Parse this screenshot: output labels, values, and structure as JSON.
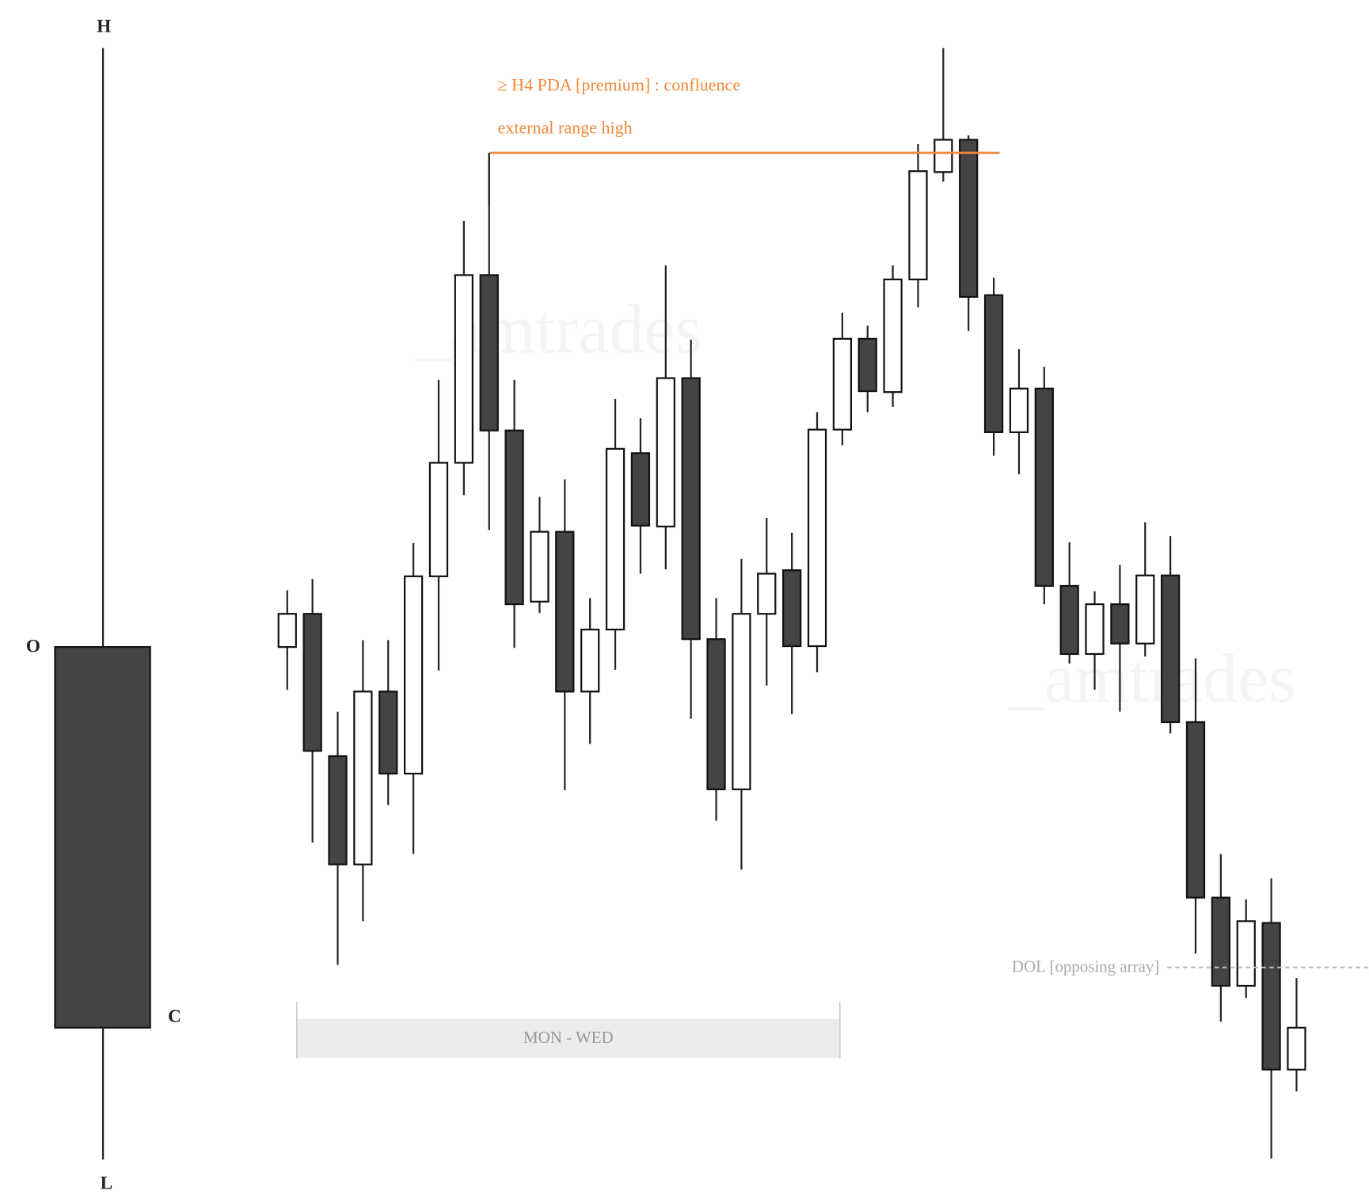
{
  "legend": {
    "labels": {
      "open": "O",
      "high": "H",
      "low": "L",
      "close": "C"
    }
  },
  "watermarks": [
    "_amtrades",
    "_amtrades"
  ],
  "chart_data": {
    "type": "candlestick",
    "ylim": [
      28,
      1400
    ],
    "up_color": "#ffffff",
    "down_color": "#444444",
    "open": [
      659,
      697,
      534,
      410,
      608,
      514,
      740,
      870,
      1085,
      907,
      711,
      791,
      608,
      679,
      881,
      797,
      967,
      668,
      496,
      697,
      747,
      660,
      908,
      1012,
      951,
      1080,
      1203,
      1240,
      1062,
      905,
      955,
      729,
      651,
      708,
      663,
      741,
      573,
      372,
      271,
      343,
      175
    ],
    "high": [
      724,
      737,
      585,
      667,
      667,
      778,
      965,
      1147,
      1225,
      965,
      831,
      851,
      715,
      943,
      921,
      1096,
      1011,
      715,
      760,
      807,
      790,
      928,
      1042,
      1027,
      1096,
      1235,
      1345,
      1245,
      1082,
      1000,
      980,
      779,
      723,
      753,
      802,
      786,
      646,
      422,
      370,
      394,
      280
    ],
    "low": [
      610,
      435,
      295,
      345,
      478,
      422,
      632,
      833,
      793,
      658,
      698,
      495,
      548,
      633,
      743,
      748,
      577,
      460,
      404,
      615,
      582,
      630,
      890,
      928,
      934,
      1048,
      1192,
      1021,
      878,
      857,
      708,
      640,
      610,
      585,
      648,
      560,
      308,
      230,
      257,
      73,
      150
    ],
    "close": [
      697,
      540,
      410,
      608,
      514,
      740,
      870,
      1085,
      907,
      708,
      791,
      608,
      679,
      886,
      798,
      967,
      668,
      496,
      697,
      743,
      660,
      908,
      1012,
      952,
      1080,
      1204,
      1240,
      1060,
      905,
      955,
      729,
      651,
      708,
      663,
      741,
      573,
      372,
      271,
      345,
      175,
      223
    ],
    "annotations": {
      "premium": "≥ H4 PDA [premium] : confluence",
      "range_high": "external range high",
      "dol": {
        "label": "DOL [opposing array]",
        "value": 292
      },
      "session": "MON - WED"
    }
  }
}
